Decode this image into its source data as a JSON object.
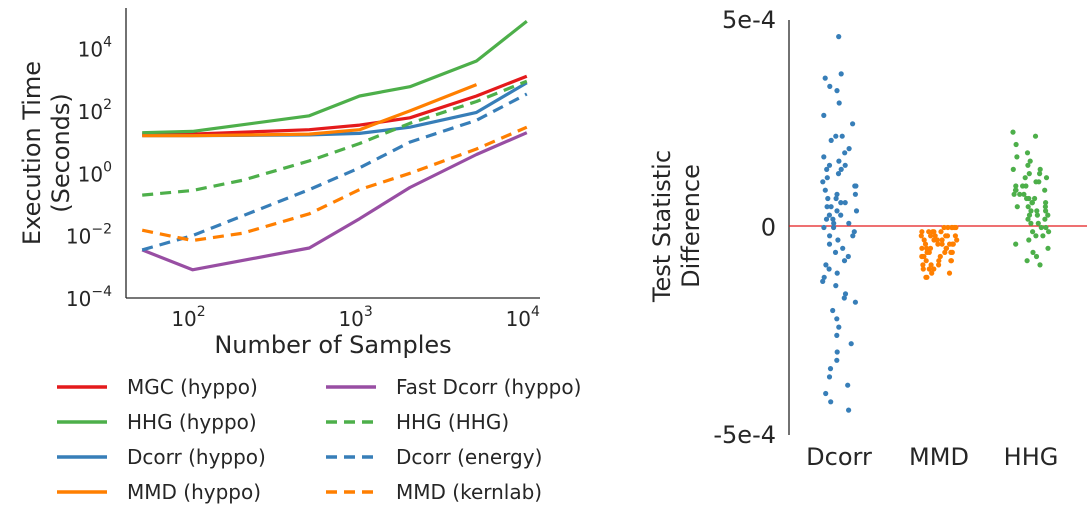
{
  "left_chart": {
    "xlabel": "Number of Samples",
    "ylabel_line1": "Execution Time",
    "ylabel_line2": "(Seconds)",
    "x_ticks": [
      {
        "base": "10",
        "exp": "2",
        "value": 100
      },
      {
        "base": "10",
        "exp": "3",
        "value": 1000
      },
      {
        "base": "10",
        "exp": "4",
        "value": 10000
      }
    ],
    "y_ticks": [
      {
        "base": "10",
        "exp": "4",
        "value": 10000
      },
      {
        "base": "10",
        "exp": "2",
        "value": 100
      },
      {
        "base": "10",
        "exp": "0",
        "value": 1
      },
      {
        "base": "10",
        "exp": "−2",
        "value": 0.01
      },
      {
        "base": "10",
        "exp": "−4",
        "value": 0.0001
      }
    ]
  },
  "right_chart": {
    "ylabel_line1": "Test Statistic",
    "ylabel_line2": "Difference",
    "y_ticks": [
      {
        "label": "5e-4",
        "value": 0.0005
      },
      {
        "label": "0",
        "value": 0
      },
      {
        "label": "-5e-4",
        "value": -0.0005
      }
    ]
  },
  "chart_data": [
    {
      "type": "line",
      "xscale": "log",
      "yscale": "log",
      "xlabel": "Number of Samples",
      "ylabel": "Execution Time (Seconds)",
      "xlim": [
        40,
        12000
      ],
      "ylim": [
        0.0001,
        200000
      ],
      "grid": false,
      "legend_position": "below",
      "series": [
        {
          "name": "MGC (hyppo)",
          "color": "#e41a1c",
          "dash": "solid",
          "x": [
            50,
            100,
            500,
            1000,
            2000,
            5000,
            10000
          ],
          "y": [
            18,
            18,
            25,
            35,
            60,
            300,
            1300
          ]
        },
        {
          "name": "HHG (hyppo)",
          "color": "#4daf4a",
          "dash": "solid",
          "x": [
            50,
            100,
            500,
            1000,
            2000,
            5000,
            10000
          ],
          "y": [
            20,
            22,
            70,
            300,
            600,
            4000,
            75000
          ]
        },
        {
          "name": "Dcorr (hyppo)",
          "color": "#377eb8",
          "dash": "solid",
          "x": [
            50,
            100,
            500,
            1000,
            2000,
            5000,
            10000
          ],
          "y": [
            16,
            16,
            17,
            19,
            30,
            90,
            800
          ]
        },
        {
          "name": "MMD (hyppo)",
          "color": "#ff7f00",
          "dash": "solid",
          "x": [
            50,
            100,
            500,
            1000,
            2000,
            5000
          ],
          "y": [
            16,
            16,
            18,
            25,
            100,
            700
          ]
        },
        {
          "name": "Fast Dcorr (hyppo)",
          "color": "#984ea3",
          "dash": "solid",
          "x": [
            50,
            100,
            500,
            1000,
            2000,
            5000,
            10000
          ],
          "y": [
            0.0035,
            0.0008,
            0.004,
            0.035,
            0.35,
            4,
            20
          ]
        },
        {
          "name": "HHG (HHG)",
          "color": "#4daf4a",
          "dash": "dashed",
          "x": [
            50,
            100,
            200,
            500,
            1000,
            2000,
            5000,
            10000
          ],
          "y": [
            0.2,
            0.28,
            0.6,
            2.5,
            9,
            40,
            200,
            900
          ]
        },
        {
          "name": "Dcorr (energy)",
          "color": "#377eb8",
          "dash": "dashed",
          "x": [
            50,
            100,
            500,
            1000,
            2000,
            5000,
            10000
          ],
          "y": [
            0.0035,
            0.01,
            0.3,
            1.5,
            10,
            50,
            350
          ]
        },
        {
          "name": "MMD (kernlab)",
          "color": "#ff7f00",
          "dash": "dashed",
          "x": [
            50,
            100,
            200,
            500,
            1000,
            2000,
            5000,
            10000
          ],
          "y": [
            0.015,
            0.007,
            0.012,
            0.05,
            0.3,
            1,
            6,
            30
          ]
        }
      ]
    },
    {
      "type": "scatter",
      "ylabel": "Test Statistic Difference",
      "categories": [
        "Dcorr",
        "MMD",
        "HHG"
      ],
      "ylim": [
        -0.0005,
        0.0005
      ],
      "reference_line": {
        "y": 0,
        "color": "#e41a1c"
      },
      "grid": false,
      "series": [
        {
          "category": "Dcorr",
          "color": "#377eb8",
          "values": [
            0.00046,
            0.00037,
            0.00036,
            0.00034,
            0.00033,
            0.0003,
            0.00027,
            0.00025,
            0.00022,
            0.00022,
            0.00021,
            0.00019,
            0.00018,
            0.00017,
            0.00016,
            0.00015,
            0.00015,
            0.00014,
            0.00014,
            0.00013,
            0.00012,
            0.00011,
            0.0001,
            0.0001,
            9e-05,
            8e-05,
            8e-05,
            7e-05,
            7e-05,
            6e-05,
            6e-05,
            5e-05,
            5e-05,
            4e-05,
            4e-05,
            3e-05,
            3e-05,
            2e-05,
            2e-05,
            1e-05,
            1e-05,
            0.0,
            0.0,
            -1e-05,
            -2e-05,
            -2e-05,
            -3e-05,
            -4e-05,
            -5e-05,
            -6e-05,
            -7e-05,
            -8e-05,
            -9e-05,
            -0.0001,
            -0.00011,
            -0.00012,
            -0.00013,
            -0.00014,
            -0.00016,
            -0.00017,
            -0.00018,
            -0.0002,
            -0.00022,
            -0.00024,
            -0.00026,
            -0.00028,
            -0.0003,
            -0.00032,
            -0.00034,
            -0.00036,
            -0.00038,
            -0.0004,
            -0.00042,
            -0.00044
          ]
        },
        {
          "category": "MMD",
          "color": "#ff7f00",
          "values": [
            0.0,
            0.0,
            0.0,
            0.0,
            0.0,
            0.0,
            -1e-05,
            -1e-05,
            -1e-05,
            -1e-05,
            -1e-05,
            -2e-05,
            -2e-05,
            -2e-05,
            -2e-05,
            -2e-05,
            -2e-05,
            -3e-05,
            -3e-05,
            -3e-05,
            -3e-05,
            -3e-05,
            -3e-05,
            -4e-05,
            -4e-05,
            -4e-05,
            -4e-05,
            -4e-05,
            -4e-05,
            -5e-05,
            -5e-05,
            -5e-05,
            -5e-05,
            -5e-05,
            -6e-05,
            -6e-05,
            -6e-05,
            -6e-05,
            -6e-05,
            -7e-05,
            -7e-05,
            -7e-05,
            -7e-05,
            -8e-05,
            -8e-05,
            -8e-05,
            -8e-05,
            -9e-05,
            -9e-05,
            -9e-05,
            -0.0001,
            -0.0001,
            -0.0001,
            -0.00011,
            -0.00011,
            -0.00012,
            -0.00012
          ]
        },
        {
          "category": "HHG",
          "color": "#4daf4a",
          "values": [
            0.00023,
            0.00022,
            0.0002,
            0.00018,
            0.00017,
            0.00016,
            0.00015,
            0.00014,
            0.00014,
            0.00013,
            0.00013,
            0.00012,
            0.00012,
            0.00011,
            0.00011,
            0.0001,
            0.0001,
            0.0001,
            9e-05,
            9e-05,
            9e-05,
            8e-05,
            8e-05,
            8e-05,
            7e-05,
            7e-05,
            7e-05,
            6e-05,
            6e-05,
            6e-05,
            5e-05,
            5e-05,
            5e-05,
            4e-05,
            4e-05,
            4e-05,
            3e-05,
            3e-05,
            3e-05,
            2e-05,
            2e-05,
            1e-05,
            1e-05,
            0.0,
            0.0,
            -1e-05,
            -1e-05,
            -2e-05,
            -2e-05,
            -3e-05,
            -4e-05,
            -5e-05,
            -6e-05,
            -7e-05,
            -8e-05,
            -9e-05
          ]
        }
      ]
    }
  ]
}
